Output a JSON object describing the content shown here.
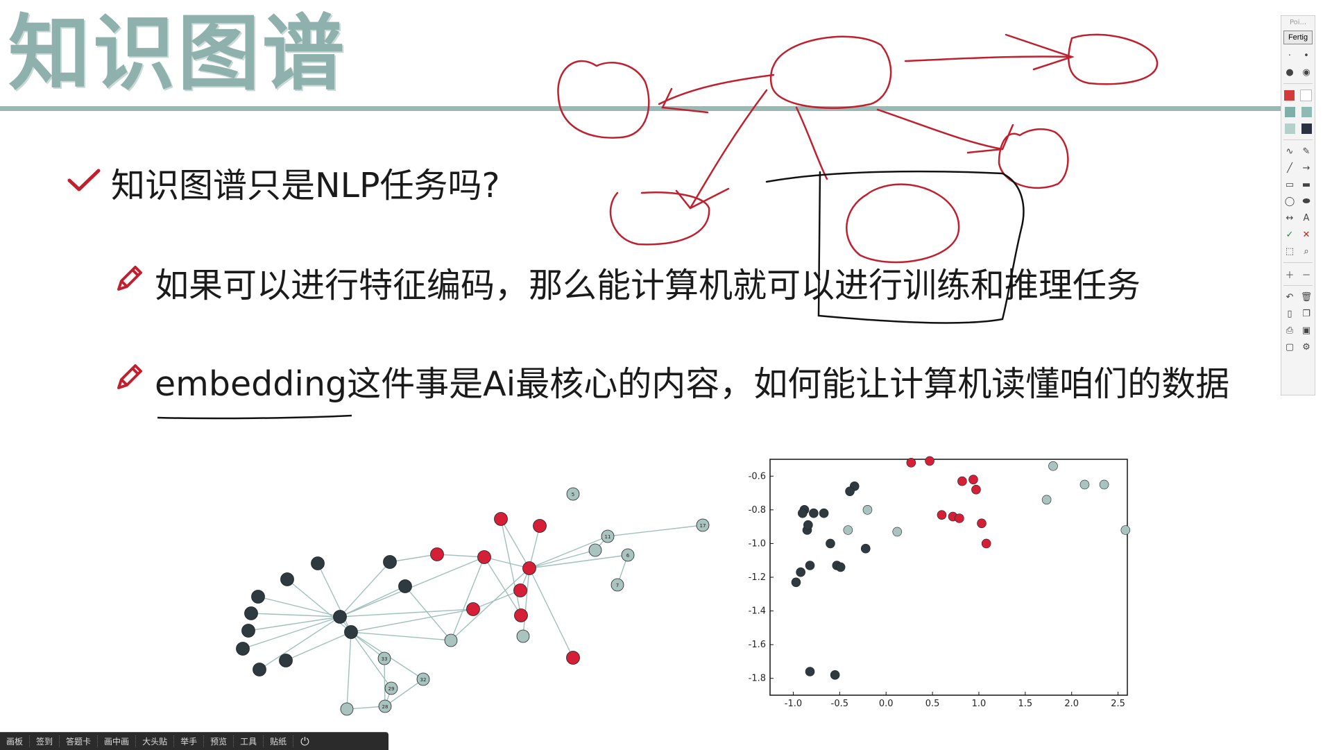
{
  "slide": {
    "title": "知识图谱",
    "bullets": [
      {
        "icon": "check-icon",
        "text": "知识图谱只是NLP任务吗?"
      },
      {
        "icon": "pencil-icon",
        "text": "如果可以进行特征编码，那么能计算机就可以进行训练和推理任务"
      },
      {
        "icon": "pencil-icon",
        "text": "embedding这件事是Ai最核心的内容，如何能让计算机读懂咱们的数据"
      }
    ],
    "accent_color": "#98b8b3",
    "annotation_color": "#c0202e"
  },
  "toolbar": {
    "title": "Poi...",
    "done_label": "Fertig",
    "zoom_letter": "A",
    "colors": [
      "#d23a3a",
      "#ffffff",
      "#7fb0a8",
      "#8fbab4",
      "#b5cfcb",
      "#2a3140"
    ]
  },
  "taskbar": {
    "items": [
      "画板",
      "签到",
      "答题卡",
      "画中画",
      "大头贴",
      "举手",
      "预览",
      "工具",
      "贴纸"
    ],
    "power_icon": "power-icon"
  },
  "chart_data": [
    {
      "type": "network",
      "node_colors": {
        "dark": "#2f3a40",
        "red": "#d41f36",
        "light": "#a9c3bf"
      },
      "nodes": [
        {
          "id": "n1",
          "group": "dark",
          "label": ""
        },
        {
          "id": "n2",
          "group": "dark",
          "label": ""
        },
        {
          "id": "n3",
          "group": "dark",
          "label": ""
        },
        {
          "id": "n4",
          "group": "dark",
          "label": ""
        },
        {
          "id": "n5",
          "group": "dark",
          "label": ""
        },
        {
          "id": "n6",
          "group": "dark",
          "label": ""
        },
        {
          "id": "n7",
          "group": "dark",
          "label": ""
        },
        {
          "id": "n8",
          "group": "dark",
          "label": ""
        },
        {
          "id": "n9",
          "group": "dark",
          "label": ""
        },
        {
          "id": "n10",
          "group": "dark",
          "label": ""
        },
        {
          "id": "n11",
          "group": "dark",
          "label": ""
        },
        {
          "id": "n12",
          "group": "dark",
          "label": ""
        },
        {
          "id": "n13",
          "group": "red",
          "label": ""
        },
        {
          "id": "n14",
          "group": "red",
          "label": ""
        },
        {
          "id": "n15",
          "group": "red",
          "label": ""
        },
        {
          "id": "n16",
          "group": "red",
          "label": ""
        },
        {
          "id": "n17",
          "group": "red",
          "label": ""
        },
        {
          "id": "n18",
          "group": "red",
          "label": ""
        },
        {
          "id": "n19",
          "group": "red",
          "label": ""
        },
        {
          "id": "n20",
          "group": "red",
          "label": ""
        },
        {
          "id": "n21",
          "group": "red",
          "label": ""
        },
        {
          "id": "n22",
          "group": "light",
          "label": ""
        },
        {
          "id": "n23",
          "group": "light",
          "label": ""
        },
        {
          "id": "n24",
          "group": "light",
          "label": "33"
        },
        {
          "id": "n25",
          "group": "light",
          "label": "32"
        },
        {
          "id": "n26",
          "group": "light",
          "label": "29"
        },
        {
          "id": "n27",
          "group": "light",
          "label": "28"
        },
        {
          "id": "n28",
          "group": "light",
          "label": ""
        },
        {
          "id": "n29",
          "group": "light",
          "label": ""
        },
        {
          "id": "n30",
          "group": "light",
          "label": "11"
        },
        {
          "id": "n31",
          "group": "light",
          "label": "6"
        },
        {
          "id": "n32",
          "group": "light",
          "label": "7"
        },
        {
          "id": "n33",
          "group": "light",
          "label": "5"
        },
        {
          "id": "n34",
          "group": "light",
          "label": "17"
        }
      ],
      "edges": [
        [
          "n1",
          "n8"
        ],
        [
          "n2",
          "n8"
        ],
        [
          "n3",
          "n8"
        ],
        [
          "n4",
          "n8"
        ],
        [
          "n5",
          "n8"
        ],
        [
          "n6",
          "n9"
        ],
        [
          "n7",
          "n9"
        ],
        [
          "n10",
          "n9"
        ],
        [
          "n11",
          "n8"
        ],
        [
          "n12",
          "n8"
        ],
        [
          "n8",
          "n9"
        ],
        [
          "n9",
          "n22"
        ],
        [
          "n9",
          "n24"
        ],
        [
          "n9",
          "n26"
        ],
        [
          "n9",
          "n25"
        ],
        [
          "n8",
          "n14"
        ],
        [
          "n8",
          "n15"
        ],
        [
          "n9",
          "n15"
        ],
        [
          "n11",
          "n13"
        ],
        [
          "n13",
          "n14"
        ],
        [
          "n14",
          "n17"
        ],
        [
          "n14",
          "n18"
        ],
        [
          "n15",
          "n16"
        ],
        [
          "n16",
          "n17"
        ],
        [
          "n17",
          "n19"
        ],
        [
          "n17",
          "n20"
        ],
        [
          "n17",
          "n21"
        ],
        [
          "n18",
          "n19"
        ],
        [
          "n17",
          "n23"
        ],
        [
          "n17",
          "n30"
        ],
        [
          "n17",
          "n31"
        ],
        [
          "n17",
          "n29"
        ],
        [
          "n29",
          "n30"
        ],
        [
          "n30",
          "n34"
        ],
        [
          "n31",
          "n32"
        ],
        [
          "n22",
          "n14"
        ],
        [
          "n22",
          "n17"
        ],
        [
          "n12",
          "n22"
        ],
        [
          "n24",
          "n27"
        ],
        [
          "n25",
          "n27"
        ],
        [
          "n26",
          "n27"
        ],
        [
          "n9",
          "n28"
        ],
        [
          "n28",
          "n27"
        ]
      ]
    },
    {
      "type": "scatter",
      "xlabel": "",
      "ylabel": "",
      "xlim": [
        -1.25,
        2.6
      ],
      "ylim": [
        -1.9,
        -0.5
      ],
      "xticks": [
        "-1.0",
        "-0.5",
        "0.0",
        "0.5",
        "1.0",
        "1.5",
        "2.0",
        "2.5"
      ],
      "yticks": [
        "-0.6",
        "-0.8",
        "-1.0",
        "-1.2",
        "-1.4",
        "-1.6",
        "-1.8"
      ],
      "series": [
        {
          "group": "dark",
          "color": "#2f3a40",
          "points": [
            [
              -0.97,
              -1.23
            ],
            [
              -0.92,
              -1.17
            ],
            [
              -0.82,
              -1.13
            ],
            [
              -0.85,
              -0.92
            ],
            [
              -0.88,
              -0.8
            ],
            [
              -0.9,
              -0.82
            ],
            [
              -0.78,
              -0.82
            ],
            [
              -0.67,
              -0.82
            ],
            [
              -0.6,
              -1.0
            ],
            [
              -0.53,
              -1.13
            ],
            [
              -0.49,
              -1.14
            ],
            [
              -0.34,
              -0.66
            ],
            [
              -0.39,
              -0.69
            ],
            [
              -0.22,
              -1.03
            ],
            [
              -0.82,
              -1.76
            ],
            [
              -0.55,
              -1.78
            ],
            [
              -0.84,
              -0.89
            ]
          ]
        },
        {
          "group": "red",
          "color": "#d41f36",
          "points": [
            [
              0.27,
              -0.52
            ],
            [
              0.47,
              -0.51
            ],
            [
              0.82,
              -0.63
            ],
            [
              0.94,
              -0.62
            ],
            [
              0.97,
              -0.68
            ],
            [
              0.6,
              -0.83
            ],
            [
              0.72,
              -0.84
            ],
            [
              0.79,
              -0.85
            ],
            [
              1.03,
              -0.88
            ],
            [
              1.08,
              -1.0
            ]
          ]
        },
        {
          "group": "light",
          "color": "#a9c3bf",
          "points": [
            [
              1.8,
              -0.54
            ],
            [
              1.73,
              -0.74
            ],
            [
              2.14,
              -0.65
            ],
            [
              2.35,
              -0.65
            ],
            [
              2.58,
              -0.92
            ],
            [
              -0.2,
              -0.8
            ],
            [
              0.12,
              -0.93
            ],
            [
              -0.41,
              -0.92
            ]
          ]
        }
      ]
    }
  ]
}
